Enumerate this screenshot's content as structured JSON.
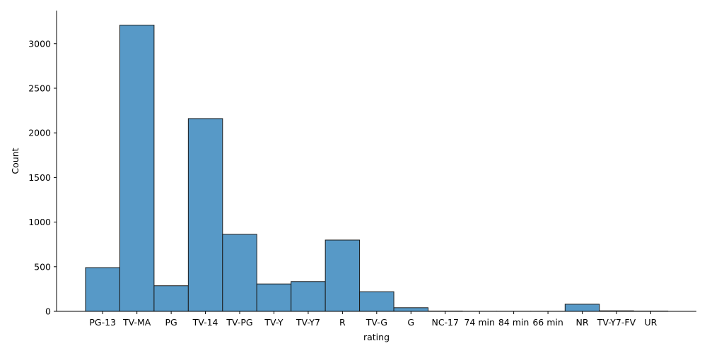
{
  "chart_data": {
    "type": "bar",
    "xlabel": "rating",
    "ylabel": "Count",
    "categories": [
      "PG-13",
      "TV-MA",
      "PG",
      "TV-14",
      "TV-PG",
      "TV-Y",
      "TV-Y7",
      "R",
      "TV-G",
      "G",
      "NC-17",
      "74 min",
      "84 min",
      "66 min",
      "NR",
      "TV-Y7-FV",
      "UR"
    ],
    "values": [
      490,
      3207,
      287,
      2160,
      863,
      307,
      334,
      799,
      220,
      41,
      3,
      1,
      1,
      1,
      80,
      6,
      3
    ],
    "yticks": [
      0,
      500,
      1000,
      1500,
      2000,
      2500,
      3000
    ],
    "ylim": [
      0,
      3370
    ],
    "grid": false,
    "bar_color": "#5799c7",
    "edge_color": "#1a1a1a"
  }
}
